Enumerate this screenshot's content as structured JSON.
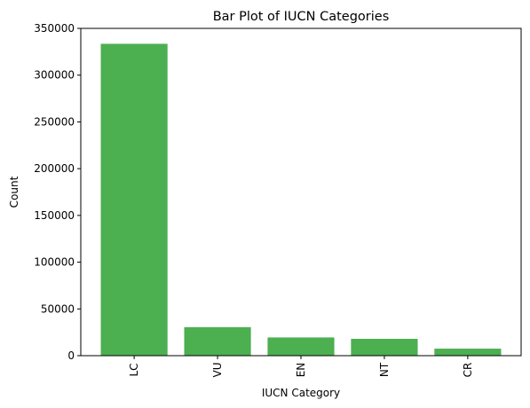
{
  "chart_data": {
    "type": "bar",
    "title": "Bar Plot of IUCN Categories",
    "xlabel": "IUCN Category",
    "ylabel": "Count",
    "categories": [
      "LC",
      "VU",
      "EN",
      "NT",
      "CR"
    ],
    "values": [
      333500,
      30500,
      19500,
      18000,
      7500
    ],
    "ylim": [
      0,
      350000
    ],
    "yticks": [
      0,
      50000,
      100000,
      150000,
      200000,
      250000,
      300000,
      350000
    ],
    "bar_color": "#4caf50",
    "grid": false,
    "legend": "none"
  }
}
